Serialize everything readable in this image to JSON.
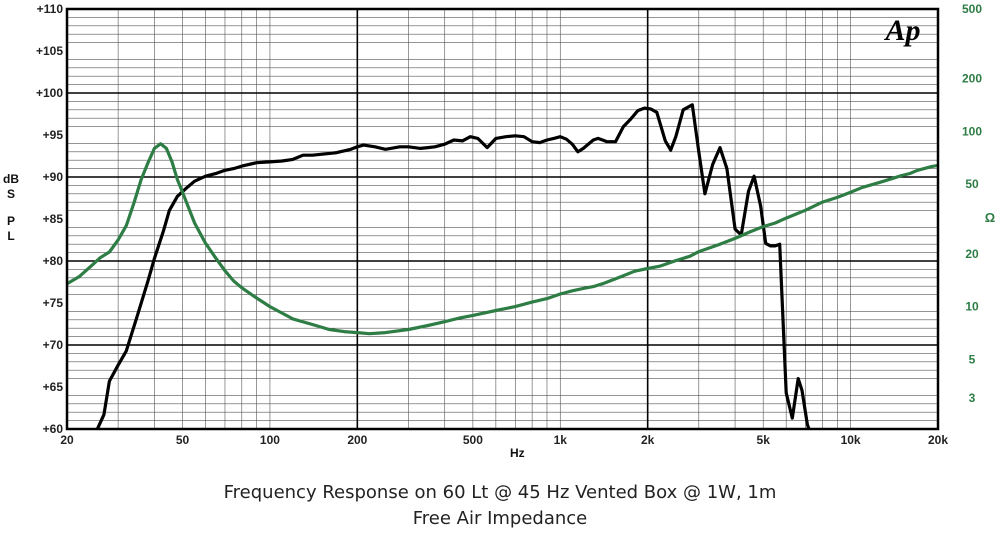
{
  "chart_data": {
    "type": "line",
    "title": "Frequency Response on 60 Lt @ 45 Hz Vented Box @ 1W, 1m",
    "subtitle": "Free Air Impedance",
    "xlabel": "Hz",
    "ylabel_left": "dB SPL",
    "ylabel_left_lines": [
      "dB",
      "S",
      "P",
      "L"
    ],
    "ylabel_right": "Ω",
    "logo_text": "Ap",
    "x_scale": "log",
    "xlim": [
      20,
      20000
    ],
    "ylim_left": [
      60,
      110
    ],
    "ylim_right": [
      2,
      500
    ],
    "y_right_scale": "log",
    "grid": true,
    "x_ticks": [
      {
        "value": 20,
        "label": "20"
      },
      {
        "value": 50,
        "label": "50"
      },
      {
        "value": 100,
        "label": "100"
      },
      {
        "value": 200,
        "label": "200"
      },
      {
        "value": 500,
        "label": "500"
      },
      {
        "value": 1000,
        "label": "1k"
      },
      {
        "value": 2000,
        "label": "2k"
      },
      {
        "value": 5000,
        "label": "5k"
      },
      {
        "value": 10000,
        "label": "10k"
      },
      {
        "value": 20000,
        "label": "20k"
      }
    ],
    "y_left_ticks": [
      {
        "value": 110,
        "label": "+110"
      },
      {
        "value": 105,
        "label": "+105"
      },
      {
        "value": 100,
        "label": "+100"
      },
      {
        "value": 95,
        "label": "+95"
      },
      {
        "value": 90,
        "label": "+90"
      },
      {
        "value": 85,
        "label": "+85"
      },
      {
        "value": 80,
        "label": "+80"
      },
      {
        "value": 75,
        "label": "+75"
      },
      {
        "value": 70,
        "label": "+70"
      },
      {
        "value": 65,
        "label": "+65"
      },
      {
        "value": 60,
        "label": "+60"
      }
    ],
    "y_right_ticks": [
      {
        "value": 500,
        "label": "500"
      },
      {
        "value": 200,
        "label": "200"
      },
      {
        "value": 100,
        "label": "100"
      },
      {
        "value": 50,
        "label": "50"
      },
      {
        "value": 20,
        "label": "20"
      },
      {
        "value": 10,
        "label": "10"
      },
      {
        "value": 5,
        "label": "5"
      },
      {
        "value": 3,
        "label": "3"
      }
    ],
    "series": [
      {
        "axis": "left",
        "color": "#000000",
        "points": [
          [
            25,
            59.4
          ],
          [
            26.8,
            61.7
          ],
          [
            28,
            65.7
          ],
          [
            30,
            67.6
          ],
          [
            32,
            69.3
          ],
          [
            35,
            73.6
          ],
          [
            38,
            77.6
          ],
          [
            40,
            80.3
          ],
          [
            43,
            83.6
          ],
          [
            45,
            86.0
          ],
          [
            48,
            87.7
          ],
          [
            52,
            88.8
          ],
          [
            55,
            89.5
          ],
          [
            60,
            90.1
          ],
          [
            65,
            90.4
          ],
          [
            70,
            90.8
          ],
          [
            75,
            91.0
          ],
          [
            80,
            91.3
          ],
          [
            90,
            91.7
          ],
          [
            100,
            91.8
          ],
          [
            110,
            91.9
          ],
          [
            120,
            92.1
          ],
          [
            130,
            92.6
          ],
          [
            140,
            92.6
          ],
          [
            150,
            92.7
          ],
          [
            170,
            92.9
          ],
          [
            190,
            93.3
          ],
          [
            200,
            93.6
          ],
          [
            210,
            93.8
          ],
          [
            230,
            93.6
          ],
          [
            250,
            93.3
          ],
          [
            280,
            93.6
          ],
          [
            300,
            93.6
          ],
          [
            330,
            93.4
          ],
          [
            350,
            93.5
          ],
          [
            370,
            93.6
          ],
          [
            400,
            93.9
          ],
          [
            430,
            94.4
          ],
          [
            460,
            94.3
          ],
          [
            490,
            94.8
          ],
          [
            520,
            94.6
          ],
          [
            560,
            93.5
          ],
          [
            600,
            94.6
          ],
          [
            650,
            94.8
          ],
          [
            700,
            94.9
          ],
          [
            750,
            94.8
          ],
          [
            800,
            94.2
          ],
          [
            850,
            94.1
          ],
          [
            900,
            94.4
          ],
          [
            950,
            94.6
          ],
          [
            1000,
            94.8
          ],
          [
            1050,
            94.5
          ],
          [
            1100,
            93.9
          ],
          [
            1150,
            93.0
          ],
          [
            1200,
            93.4
          ],
          [
            1300,
            94.4
          ],
          [
            1350,
            94.6
          ],
          [
            1450,
            94.2
          ],
          [
            1550,
            94.2
          ],
          [
            1650,
            96.0
          ],
          [
            1750,
            96.9
          ],
          [
            1850,
            97.9
          ],
          [
            1950,
            98.2
          ],
          [
            2050,
            98.1
          ],
          [
            2150,
            97.7
          ],
          [
            2300,
            94.3
          ],
          [
            2400,
            93.2
          ],
          [
            2500,
            94.8
          ],
          [
            2650,
            98.0
          ],
          [
            2850,
            98.6
          ],
          [
            3000,
            93.0
          ],
          [
            3150,
            88.0
          ],
          [
            3350,
            91.5
          ],
          [
            3550,
            93.5
          ],
          [
            3750,
            91.0
          ],
          [
            4000,
            83.8
          ],
          [
            4200,
            83.1
          ],
          [
            4450,
            88.3
          ],
          [
            4650,
            90.1
          ],
          [
            4900,
            86.5
          ],
          [
            5100,
            82.1
          ],
          [
            5300,
            81.8
          ],
          [
            5500,
            81.8
          ],
          [
            5700,
            82.0
          ],
          [
            6000,
            64.3
          ],
          [
            6300,
            61.3
          ],
          [
            6600,
            66.0
          ],
          [
            6800,
            64.6
          ],
          [
            7100,
            60.5
          ],
          [
            7300,
            59.4
          ]
        ]
      },
      {
        "axis": "right",
        "color": "#2e7d45",
        "points": [
          [
            20,
            13.5
          ],
          [
            22,
            14.8
          ],
          [
            24,
            16.8
          ],
          [
            26,
            19.0
          ],
          [
            28,
            20.5
          ],
          [
            30,
            24.0
          ],
          [
            32,
            29.0
          ],
          [
            34,
            39.0
          ],
          [
            36,
            53.0
          ],
          [
            38,
            66.0
          ],
          [
            40,
            80.0
          ],
          [
            42,
            85.0
          ],
          [
            44,
            80.0
          ],
          [
            46,
            67.0
          ],
          [
            48,
            53.0
          ],
          [
            50,
            45.0
          ],
          [
            55,
            30.0
          ],
          [
            60,
            23.0
          ],
          [
            65,
            19.0
          ],
          [
            70,
            16.0
          ],
          [
            75,
            14.0
          ],
          [
            80,
            12.8
          ],
          [
            90,
            11.2
          ],
          [
            100,
            10.0
          ],
          [
            120,
            8.5
          ],
          [
            140,
            7.9
          ],
          [
            160,
            7.4
          ],
          [
            180,
            7.2
          ],
          [
            200,
            7.1
          ],
          [
            220,
            7.0
          ],
          [
            250,
            7.1
          ],
          [
            300,
            7.4
          ],
          [
            350,
            7.8
          ],
          [
            400,
            8.2
          ],
          [
            450,
            8.6
          ],
          [
            500,
            8.9
          ],
          [
            600,
            9.5
          ],
          [
            700,
            10.0
          ],
          [
            800,
            10.6
          ],
          [
            900,
            11.1
          ],
          [
            1000,
            11.8
          ],
          [
            1100,
            12.3
          ],
          [
            1200,
            12.7
          ],
          [
            1300,
            13.0
          ],
          [
            1400,
            13.5
          ],
          [
            1600,
            14.7
          ],
          [
            1800,
            15.9
          ],
          [
            2000,
            16.5
          ],
          [
            2200,
            17.0
          ],
          [
            2500,
            18.3
          ],
          [
            2800,
            19.4
          ],
          [
            3000,
            20.6
          ],
          [
            3500,
            22.5
          ],
          [
            4000,
            24.5
          ],
          [
            4500,
            26.7
          ],
          [
            5000,
            28.6
          ],
          [
            5500,
            30.0
          ],
          [
            6000,
            32.0
          ],
          [
            7000,
            35.5
          ],
          [
            8000,
            39.5
          ],
          [
            9000,
            42.0
          ],
          [
            10000,
            45.0
          ],
          [
            11000,
            48.0
          ],
          [
            12000,
            50.0
          ],
          [
            13000,
            52.0
          ],
          [
            14000,
            54.0
          ],
          [
            15000,
            56.0
          ],
          [
            16000,
            57.5
          ],
          [
            17000,
            60.0
          ],
          [
            18000,
            61.5
          ],
          [
            19000,
            63.0
          ],
          [
            20000,
            64.0
          ]
        ]
      }
    ]
  }
}
